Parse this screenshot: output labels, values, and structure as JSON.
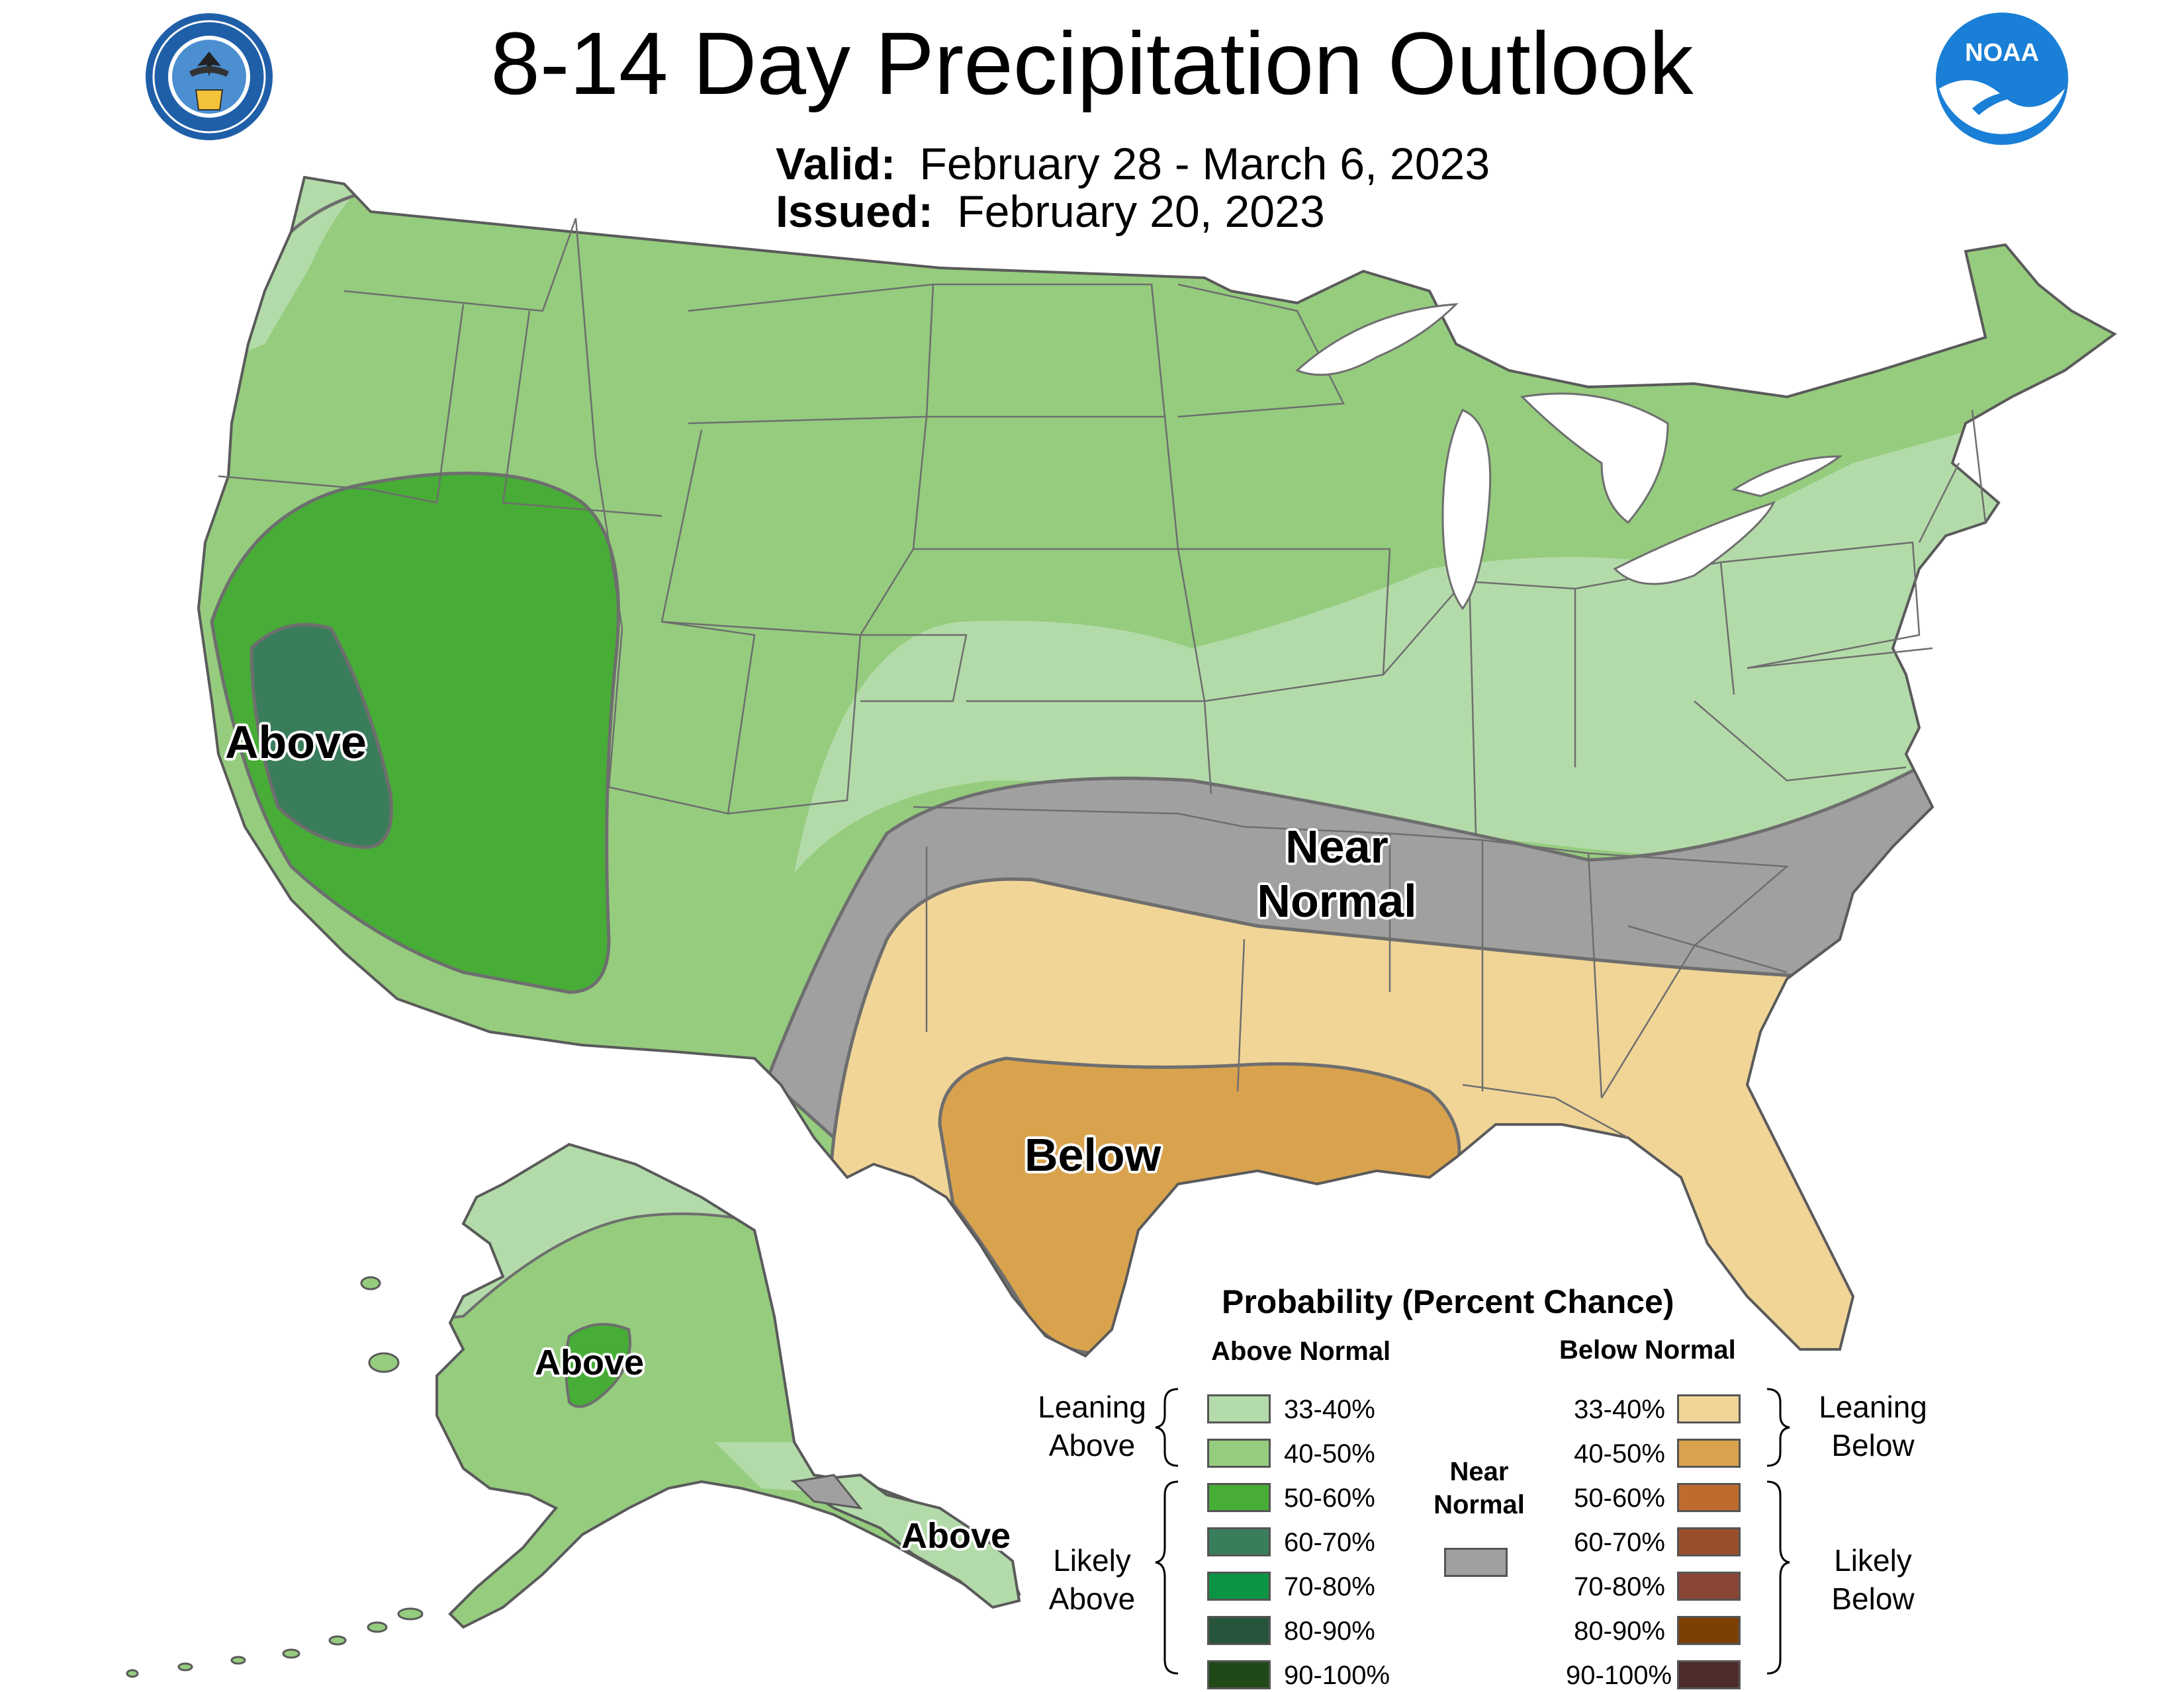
{
  "header": {
    "title": "8-14 Day Precipitation Outlook",
    "valid_label": "Valid:",
    "valid_value": "February 28 - March 6, 2023",
    "issued_label": "Issued:",
    "issued_value": "February 20, 2023"
  },
  "logos": {
    "commerce_seal_text": "DEPARTMENT OF COMMERCE · UNITED STATES OF AMERICA",
    "noaa_text": "NOAA"
  },
  "map_labels": {
    "west_above": "Above",
    "near_normal_line1": "Near",
    "near_normal_line2": "Normal",
    "south_below": "Below",
    "alaska_above": "Above",
    "panhandle_above": "Above"
  },
  "legend": {
    "title": "Probability (Percent Chance)",
    "above_header": "Above Normal",
    "below_header": "Below Normal",
    "near_normal_line1": "Near",
    "near_normal_line2": "Normal",
    "leaning_above_line1": "Leaning",
    "leaning_above_line2": "Above",
    "likely_above_line1": "Likely",
    "likely_above_line2": "Above",
    "leaning_below_line1": "Leaning",
    "leaning_below_line2": "Below",
    "likely_below_line1": "Likely",
    "likely_below_line2": "Below",
    "above_items": [
      {
        "label": "33-40%",
        "color": "#b3dba9"
      },
      {
        "label": "40-50%",
        "color": "#95cc7e"
      },
      {
        "label": "50-60%",
        "color": "#47ad37"
      },
      {
        "label": "60-70%",
        "color": "#3a7d5b"
      },
      {
        "label": "70-80%",
        "color": "#0a9443"
      },
      {
        "label": "80-90%",
        "color": "#26553b"
      },
      {
        "label": "90-100%",
        "color": "#1f4a18"
      }
    ],
    "below_items": [
      {
        "label": "33-40%",
        "color": "#f0d597"
      },
      {
        "label": "40-50%",
        "color": "#d9a34e"
      },
      {
        "label": "50-60%",
        "color": "#bf6b30"
      },
      {
        "label": "60-70%",
        "color": "#9a4e2b"
      },
      {
        "label": "70-80%",
        "color": "#8b4535"
      },
      {
        "label": "80-90%",
        "color": "#7c4002"
      },
      {
        "label": "90-100%",
        "color": "#4e2c2c"
      }
    ],
    "near_normal_color": "#a0a0a0"
  },
  "colors": {
    "border": "#6e6e6e",
    "great_lakes": "#ffffff"
  }
}
